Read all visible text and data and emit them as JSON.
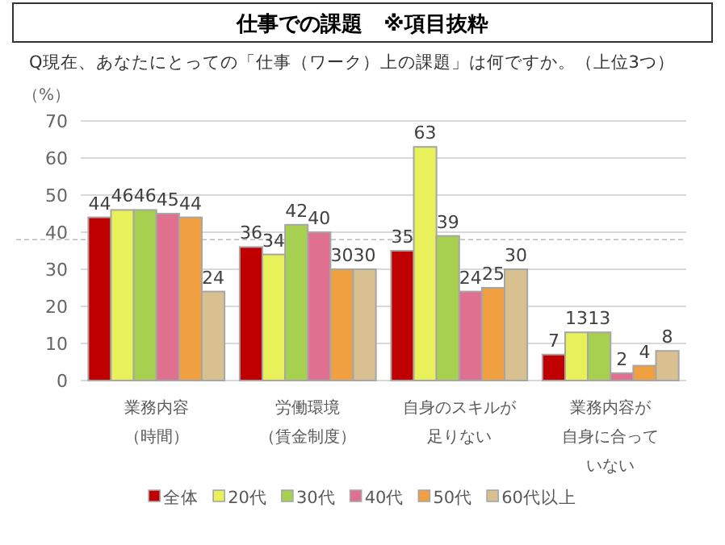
{
  "chart_data": {
    "type": "bar",
    "title": "仕事での課題　※項目抜粋",
    "subtitle": "Q現在、あなたにとっての「仕事（ワーク）上の課題」は何ですか。（上位3つ）",
    "ylabel": "（%）",
    "categories": [
      "業務内容（時間）",
      "労働環境（賃金制度）",
      "自身のスキルが足りない",
      "業務内容が自身に合っていない"
    ],
    "series": [
      {
        "name": "全体",
        "color": "#c00000",
        "values": [
          44,
          36,
          35,
          7
        ]
      },
      {
        "name": "20代",
        "color": "#e8f05a",
        "values": [
          46,
          34,
          63,
          13
        ]
      },
      {
        "name": "30代",
        "color": "#a8d050",
        "values": [
          46,
          42,
          39,
          13
        ]
      },
      {
        "name": "40代",
        "color": "#e07090",
        "values": [
          45,
          40,
          24,
          2
        ]
      },
      {
        "name": "50代",
        "color": "#f0a040",
        "values": [
          44,
          30,
          25,
          4
        ]
      },
      {
        "name": "60代以上",
        "color": "#d8c090",
        "values": [
          24,
          30,
          30,
          8
        ]
      }
    ],
    "ylim": [
      0,
      70
    ],
    "yticks": [
      0,
      10,
      20,
      30,
      40,
      50,
      60,
      70
    ],
    "grid": "y",
    "data_labels": true,
    "legend": "bottom",
    "ref_lines": [
      {
        "axis": "y",
        "value": 38,
        "color": "#bbbbbb",
        "line_style": "dashed"
      }
    ]
  }
}
